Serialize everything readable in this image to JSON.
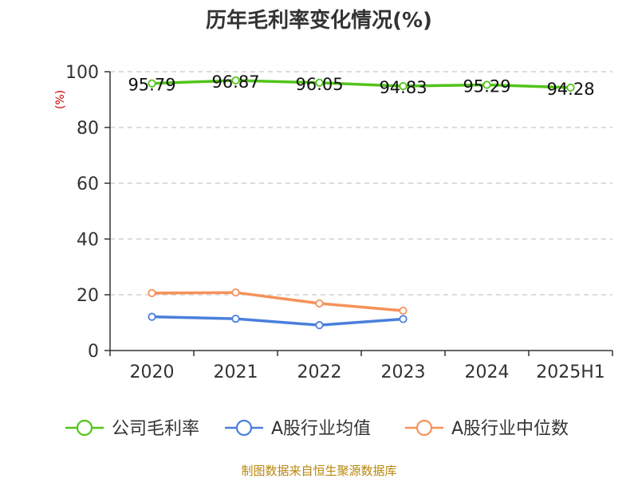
{
  "chart_data": {
    "type": "line",
    "title": "历年毛利率变化情况(%)",
    "ylabel": "(%)",
    "xlabel": "",
    "categories": [
      "2020",
      "2021",
      "2022",
      "2023",
      "2024",
      "2025H1"
    ],
    "ylim": [
      0,
      100
    ],
    "yticks": [
      0,
      20,
      40,
      60,
      80,
      100
    ],
    "grid": true,
    "legend_position": "bottom",
    "series": [
      {
        "name": "公司毛利率",
        "color": "#52c41a",
        "values": [
          95.79,
          96.87,
          96.05,
          94.83,
          95.29,
          94.28
        ],
        "labels": [
          "95.79",
          "96.87",
          "96.05",
          "94.83",
          "95.29",
          "94.28"
        ]
      },
      {
        "name": "A股行业均值",
        "color": "#4a7fdc",
        "values": [
          12.1,
          11.4,
          9.1,
          11.3,
          null,
          null
        ]
      },
      {
        "name": "A股行业中位数",
        "color": "#f5925a",
        "values": [
          20.6,
          20.8,
          16.9,
          14.3,
          null,
          null
        ]
      }
    ]
  },
  "colors": {
    "unit": "#cc0000",
    "footer": "#b8860b",
    "axis": "#333333",
    "grid": "#c8c8c8"
  },
  "footer": "制图数据来自恒生聚源数据库"
}
